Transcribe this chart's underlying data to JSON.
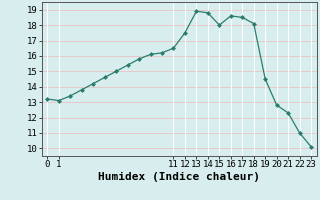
{
  "x": [
    0,
    1,
    2,
    3,
    4,
    5,
    6,
    7,
    8,
    9,
    10,
    11,
    12,
    13,
    14,
    15,
    16,
    17,
    18,
    19,
    20,
    21,
    22,
    23
  ],
  "y": [
    13.2,
    13.1,
    13.4,
    13.8,
    14.2,
    14.6,
    15.0,
    15.4,
    15.8,
    16.1,
    16.2,
    16.5,
    17.5,
    18.9,
    18.8,
    18.0,
    18.6,
    18.5,
    18.1,
    14.5,
    12.8,
    12.3,
    11.0,
    10.1
  ],
  "xlabel": "Humidex (Indice chaleur)",
  "xticks": [
    0,
    1,
    11,
    12,
    13,
    14,
    15,
    16,
    17,
    18,
    19,
    20,
    21,
    22,
    23
  ],
  "yticks": [
    10,
    11,
    12,
    13,
    14,
    15,
    16,
    17,
    18,
    19
  ],
  "ylim": [
    9.5,
    19.5
  ],
  "xlim": [
    -0.5,
    23.5
  ],
  "line_color": "#2a7d6e",
  "bg_color": "#d8eeee",
  "grid_color_h": "#e8c8c8",
  "grid_color_v": "#ffffff",
  "xlabel_fontsize": 8,
  "tick_fontsize": 6.5
}
